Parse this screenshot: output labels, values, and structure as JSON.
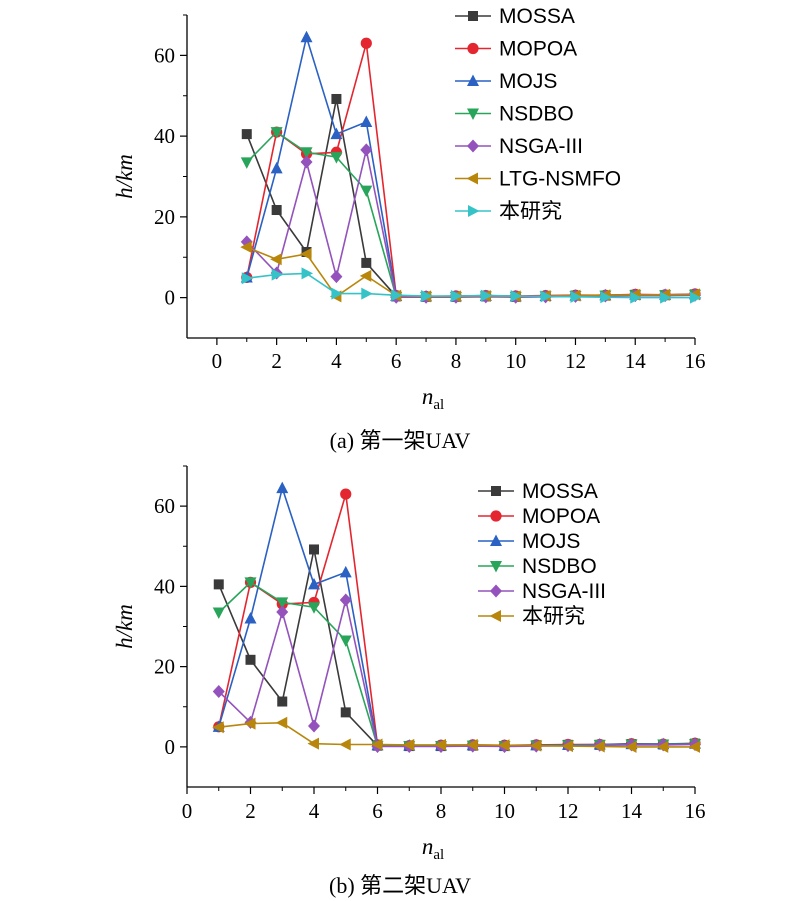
{
  "chart_data": [
    {
      "type": "line",
      "title": "",
      "caption": "(a) 第一架UAV",
      "xlabel": "n",
      "xlabel_sub": "al",
      "ylabel": "h/km",
      "xlim": [
        -1,
        16
      ],
      "ylim": [
        -10,
        70
      ],
      "xticks": [
        "0",
        "2",
        "4",
        "6",
        "8",
        "10",
        "12",
        "14",
        "16"
      ],
      "yticks": [
        "0",
        "20",
        "40",
        "60"
      ],
      "legend_position": "top-right",
      "x": [
        1,
        2,
        3,
        4,
        5,
        6,
        7,
        8,
        9,
        10,
        11,
        12,
        13,
        14,
        15,
        16
      ],
      "series": [
        {
          "name": "MOSSA",
          "color": "#3a3a3a",
          "marker": "square",
          "values": [
            40.5,
            21.7,
            11.3,
            49.2,
            8.6,
            0.3,
            0.2,
            0.2,
            0.3,
            0.2,
            0.4,
            0.5,
            0.5,
            0.7,
            0.6,
            0.8
          ]
        },
        {
          "name": "MOPOA",
          "color": "#e3262f",
          "marker": "circle",
          "values": [
            5.0,
            41.0,
            35.6,
            36.0,
            63.0,
            0.5,
            0.3,
            0.4,
            0.5,
            0.4,
            0.5,
            0.6,
            0.6,
            0.8,
            0.7,
            0.9
          ]
        },
        {
          "name": "MOJS",
          "color": "#2a61c3",
          "marker": "triangle-up",
          "values": [
            5.0,
            32.0,
            64.5,
            40.5,
            43.5,
            0.4,
            0.3,
            0.3,
            0.4,
            0.3,
            0.4,
            0.5,
            0.6,
            0.7,
            0.7,
            0.8
          ]
        },
        {
          "name": "NSDBO",
          "color": "#28a55a",
          "marker": "triangle-down",
          "values": [
            33.5,
            41.0,
            36.0,
            34.8,
            26.5,
            0.2,
            0.2,
            0.2,
            0.3,
            0.2,
            0.3,
            0.4,
            0.5,
            0.6,
            0.6,
            0.7
          ]
        },
        {
          "name": "NSGA-III",
          "color": "#9452bc",
          "marker": "diamond",
          "values": [
            13.8,
            6.1,
            33.6,
            5.2,
            36.6,
            0.1,
            0.1,
            0.1,
            0.2,
            0.1,
            0.2,
            0.3,
            0.4,
            0.5,
            0.5,
            0.6
          ]
        },
        {
          "name": "LTG-NSMFO",
          "color": "#b8860b",
          "marker": "triangle-left",
          "values": [
            12.5,
            9.5,
            10.8,
            0.3,
            5.4,
            0.5,
            0.3,
            0.3,
            0.4,
            0.3,
            0.4,
            0.5,
            0.6,
            0.7,
            0.7,
            0.8
          ]
        },
        {
          "name": "本研究",
          "color": "#36c3c8",
          "marker": "triangle-right",
          "values": [
            4.8,
            5.7,
            6.0,
            1.0,
            1.0,
            0.6,
            0.4,
            0.4,
            0.5,
            0.4,
            0.3,
            0.2,
            0.1,
            0.0,
            0.0,
            0.0
          ]
        }
      ]
    },
    {
      "type": "line",
      "title": "",
      "caption": "(b) 第二架UAV",
      "xlabel": "n",
      "xlabel_sub": "al",
      "ylabel": "h/km",
      "xlim": [
        0,
        16
      ],
      "ylim": [
        -10,
        70
      ],
      "xticks": [
        "0",
        "2",
        "4",
        "6",
        "8",
        "10",
        "12",
        "14",
        "16"
      ],
      "yticks": [
        "0",
        "20",
        "40",
        "60"
      ],
      "legend_position": "top-right",
      "x": [
        1,
        2,
        3,
        4,
        5,
        6,
        7,
        8,
        9,
        10,
        11,
        12,
        13,
        14,
        15,
        16
      ],
      "series": [
        {
          "name": "MOSSA",
          "color": "#3a3a3a",
          "marker": "square",
          "values": [
            40.5,
            21.7,
            11.3,
            49.2,
            8.6,
            0.3,
            0.2,
            0.2,
            0.3,
            0.2,
            0.4,
            0.5,
            0.5,
            0.7,
            0.6,
            0.8
          ]
        },
        {
          "name": "MOPOA",
          "color": "#e3262f",
          "marker": "circle",
          "values": [
            5.0,
            41.0,
            35.6,
            36.0,
            63.0,
            0.5,
            0.3,
            0.4,
            0.5,
            0.4,
            0.5,
            0.6,
            0.6,
            0.8,
            0.7,
            0.9
          ]
        },
        {
          "name": "MOJS",
          "color": "#2a61c3",
          "marker": "triangle-up",
          "values": [
            5.0,
            32.0,
            64.5,
            40.5,
            43.5,
            0.4,
            0.3,
            0.3,
            0.4,
            0.3,
            0.4,
            0.5,
            0.6,
            0.7,
            0.7,
            0.8
          ]
        },
        {
          "name": "NSDBO",
          "color": "#28a55a",
          "marker": "triangle-down",
          "values": [
            33.5,
            41.0,
            36.0,
            34.8,
            26.5,
            0.2,
            0.2,
            0.2,
            0.3,
            0.2,
            0.3,
            0.4,
            0.5,
            0.6,
            0.6,
            0.7
          ]
        },
        {
          "name": "NSGA-III",
          "color": "#9452bc",
          "marker": "diamond",
          "values": [
            13.8,
            6.1,
            33.6,
            5.2,
            36.6,
            0.1,
            0.1,
            0.1,
            0.2,
            0.1,
            0.2,
            0.3,
            0.4,
            0.5,
            0.5,
            0.6
          ]
        },
        {
          "name": "本研究",
          "color": "#b8860b",
          "marker": "triangle-left",
          "values": [
            4.9,
            5.8,
            6.0,
            0.8,
            0.6,
            0.6,
            0.5,
            0.5,
            0.5,
            0.4,
            0.3,
            0.2,
            0.1,
            0.0,
            0.0,
            0.0
          ]
        }
      ]
    }
  ]
}
